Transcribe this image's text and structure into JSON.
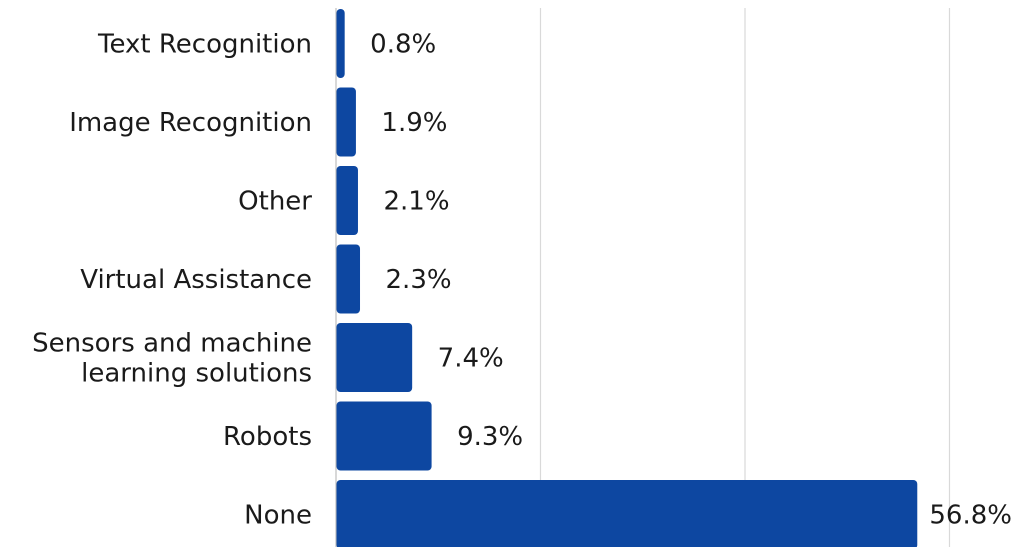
{
  "chart_data": {
    "type": "bar",
    "orientation": "horizontal",
    "categories": [
      "Text Recognition",
      "Image Recognition",
      "Other",
      "Virtual Assistance",
      "Sensors and machine learning solutions",
      "Robots",
      "None"
    ],
    "category_lines": [
      [
        "Text Recognition"
      ],
      [
        "Image Recognition"
      ],
      [
        "Other"
      ],
      [
        "Virtual Assistance"
      ],
      [
        "Sensors and machine",
        "learning solutions"
      ],
      [
        "Robots"
      ],
      [
        "None"
      ]
    ],
    "values": [
      0.8,
      1.9,
      2.1,
      2.3,
      7.4,
      9.3,
      56.8
    ],
    "value_labels": [
      "0.8%",
      "1.9%",
      "2.1%",
      "2.3%",
      "7.4%",
      "9.3%",
      "56.8%"
    ],
    "xlim": [
      0,
      60
    ],
    "grid_values": [
      20,
      40,
      60
    ],
    "grid": true,
    "bar_color": "#0d47a1",
    "grid_color": "#d9d9d9",
    "axis_color": "#bdbdbd"
  }
}
